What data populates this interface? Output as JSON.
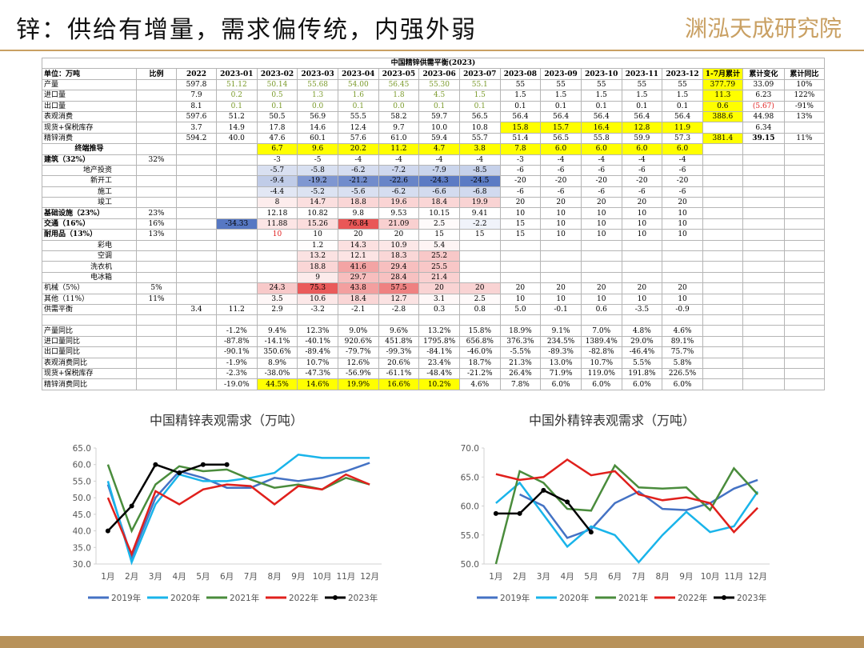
{
  "header": {
    "title": "锌：供给有增量，需求偏传统，内强外弱",
    "logo": "渊泓天成研究院"
  },
  "table": {
    "title": "中国精锌供需平衡(2023)",
    "columns": [
      "单位：万吨",
      "比例",
      "2022",
      "2023-01",
      "2023-02",
      "2023-03",
      "2023-04",
      "2023-05",
      "2023-06",
      "2023-07",
      "2023-08",
      "2023-09",
      "2023-10",
      "2023-11",
      "2023-12",
      "1-7月累计",
      "累计变化",
      "累计同比"
    ],
    "rows": [
      [
        "产量",
        null,
        "597.8",
        "51.12",
        "50.14",
        "55.68",
        "54.00",
        "56.45",
        "55.30",
        "55.1",
        "55",
        "55",
        "55",
        "55",
        "55",
        "377.79",
        "33.09",
        "10%"
      ],
      [
        "进口量",
        null,
        "7.9",
        "0.2",
        "0.5",
        "1.3",
        "1.6",
        "1.8",
        "4.5",
        "1.5",
        "1.5",
        "1.5",
        "1.5",
        "1.5",
        "1.5",
        "11.3",
        "6.23",
        "122%"
      ],
      [
        "出口量",
        null,
        "8.1",
        "0.1",
        "0.1",
        "0.0",
        "0.1",
        "0.0",
        "0.1",
        "0.1",
        "0.1",
        "0.1",
        "0.1",
        "0.1",
        "0.1",
        "0.6",
        "(5.67)",
        "-91%"
      ],
      [
        "表观消费",
        null,
        "597.6",
        "51.2",
        "50.5",
        "56.9",
        "55.5",
        "58.2",
        "59.7",
        "56.5",
        "56.4",
        "56.4",
        "56.4",
        "56.4",
        "56.4",
        "388.6",
        "44.98",
        "13%"
      ],
      [
        "现货+保税库存",
        null,
        "3.7",
        "14.9",
        "17.8",
        "14.6",
        "12.4",
        "9.7",
        "10.0",
        "10.8",
        "15.8",
        "15.7",
        "16.4",
        "12.8",
        "11.9",
        null,
        "6.34",
        null
      ],
      [
        "精锌消费",
        null,
        "594.2",
        "40.0",
        "47.6",
        "60.1",
        "57.6",
        "61.0",
        "59.4",
        "55.7",
        "51.4",
        "56.5",
        "55.8",
        "59.9",
        "57.3",
        "381.4",
        "39.15",
        "11%"
      ],
      [
        "终端推导",
        null,
        null,
        null,
        "6.7",
        "9.6",
        "20.2",
        "11.2",
        "4.7",
        "3.8",
        "7.8",
        "6.0",
        "6.0",
        "6.0",
        "6.0",
        null,
        null,
        null
      ],
      [
        "建筑（32%）",
        "32%",
        null,
        null,
        "-3",
        "-5",
        "-4",
        "-4",
        "-4",
        "-4",
        "-3",
        "-4",
        "-4",
        "-4",
        "-4",
        null,
        null,
        null
      ],
      [
        "地产投资",
        null,
        null,
        null,
        "-5.7",
        "-5.8",
        "-6.2",
        "-7.2",
        "-7.9",
        "-8.5",
        "-6",
        "-6",
        "-6",
        "-6",
        "-6",
        null,
        null,
        null
      ],
      [
        "新开工",
        null,
        null,
        null,
        "-9.4",
        "-19.2",
        "-21.2",
        "-22.6",
        "-24.3",
        "-24.5",
        "-20",
        "-20",
        "-20",
        "-20",
        "-20",
        null,
        null,
        null
      ],
      [
        "施工",
        null,
        null,
        null,
        "-4.4",
        "-5.2",
        "-5.6",
        "-6.2",
        "-6.6",
        "-6.8",
        "-6",
        "-6",
        "-6",
        "-6",
        "-6",
        null,
        null,
        null
      ],
      [
        "竣工",
        null,
        null,
        null,
        "8",
        "14.7",
        "18.8",
        "19.6",
        "18.4",
        "19.9",
        "20",
        "20",
        "20",
        "20",
        "20",
        null,
        null,
        null
      ],
      [
        "基础设施（23%）",
        "23%",
        null,
        null,
        "12.18",
        "10.82",
        "9.8",
        "9.53",
        "10.15",
        "9.41",
        "10",
        "10",
        "10",
        "10",
        "10",
        null,
        null,
        null
      ],
      [
        "交通（16%）",
        "16%",
        null,
        "-34.33",
        "11.88",
        "15.26",
        "76.84",
        "21.09",
        "2.5",
        "-2.2",
        "15",
        "10",
        "10",
        "10",
        "10",
        null,
        null,
        null
      ],
      [
        "耐用品（13%）",
        "13%",
        null,
        null,
        "10",
        "10",
        "20",
        "20",
        "15",
        "15",
        "15",
        "10",
        "10",
        "10",
        "10",
        null,
        null,
        null
      ],
      [
        "彩电",
        null,
        null,
        null,
        null,
        "1.2",
        "14.3",
        "10.9",
        "5.4",
        null,
        null,
        null,
        null,
        null,
        null,
        null,
        null,
        null
      ],
      [
        "空调",
        null,
        null,
        null,
        null,
        "13.2",
        "12.1",
        "18.3",
        "25.2",
        null,
        null,
        null,
        null,
        null,
        null,
        null,
        null,
        null
      ],
      [
        "洗衣机",
        null,
        null,
        null,
        null,
        "18.8",
        "41.6",
        "29.4",
        "25.5",
        null,
        null,
        null,
        null,
        null,
        null,
        null,
        null,
        null
      ],
      [
        "电冰箱",
        null,
        null,
        null,
        null,
        "9",
        "29.7",
        "28.4",
        "21.4",
        null,
        null,
        null,
        null,
        null,
        null,
        null,
        null,
        null
      ],
      [
        "机械（5%）",
        "5%",
        null,
        null,
        "24.3",
        "75.3",
        "43.8",
        "57.5",
        "20",
        "20",
        "20",
        "20",
        "20",
        "20",
        "20",
        null,
        null,
        null
      ],
      [
        "其他（11%）",
        "11%",
        null,
        null,
        "3.5",
        "10.6",
        "18.4",
        "12.7",
        "3.1",
        "2.5",
        "10",
        "10",
        "10",
        "10",
        "10",
        null,
        null,
        null
      ],
      [
        "供需平衡",
        null,
        "3.4",
        "11.2",
        "2.9",
        "-3.2",
        "-2.1",
        "-2.8",
        "0.3",
        "0.8",
        "5.0",
        "-0.1",
        "0.6",
        "-3.5",
        "-0.9",
        null,
        null,
        null
      ],
      [
        "产量同比",
        null,
        null,
        "-1.2%",
        "9.4%",
        "12.3%",
        "9.0%",
        "9.6%",
        "13.2%",
        "15.8%",
        "18.9%",
        "9.1%",
        "7.0%",
        "4.8%",
        "4.6%",
        null,
        null,
        null
      ],
      [
        "进口量同比",
        null,
        null,
        "-87.8%",
        "-14.1%",
        "-40.1%",
        "920.6%",
        "451.8%",
        "1795.8%",
        "656.8%",
        "376.3%",
        "234.5%",
        "1389.4%",
        "29.0%",
        "89.1%",
        null,
        null,
        null
      ],
      [
        "出口量同比",
        null,
        null,
        "-90.1%",
        "350.6%",
        "-89.4%",
        "-79.7%",
        "-99.3%",
        "-84.1%",
        "-46.0%",
        "-5.5%",
        "-89.3%",
        "-82.8%",
        "-46.4%",
        "75.7%",
        null,
        null,
        null
      ],
      [
        "表观消费同比",
        null,
        null,
        "-1.9%",
        "8.9%",
        "10.7%",
        "12.6%",
        "20.6%",
        "23.4%",
        "18.7%",
        "21.3%",
        "13.0%",
        "10.7%",
        "5.5%",
        "5.8%",
        null,
        null,
        null
      ],
      [
        "现货+保税库存",
        null,
        null,
        "-2.3%",
        "-38.0%",
        "-47.3%",
        "-56.9%",
        "-61.1%",
        "-48.4%",
        "-21.2%",
        "26.4%",
        "71.9%",
        "119.0%",
        "191.8%",
        "226.5%",
        null,
        null,
        null
      ],
      [
        "精锌消费同比",
        null,
        null,
        "-19.0%",
        "44.5%",
        "14.6%",
        "19.9%",
        "16.6%",
        "10.2%",
        "4.6%",
        "7.8%",
        "6.0%",
        "6.0%",
        "6.0%",
        "6.0%",
        null,
        null,
        null
      ]
    ]
  },
  "chart_data": [
    {
      "type": "line",
      "title": "中国精锌表观需求（万吨）",
      "categories": [
        "1月",
        "2月",
        "3月",
        "4月",
        "5月",
        "6月",
        "7月",
        "8月",
        "9月",
        "10月",
        "11月",
        "12月"
      ],
      "ylim": [
        30,
        65
      ],
      "yticks": [
        {
          "value": 30,
          "label": "30.0"
        },
        {
          "value": 35,
          "label": "35.0"
        },
        {
          "value": 40,
          "label": "40.0"
        },
        {
          "value": 45,
          "label": "45.0"
        },
        {
          "value": 50,
          "label": "50.0"
        },
        {
          "value": 55,
          "label": "55.0"
        },
        {
          "value": 60,
          "label": "60.0"
        },
        {
          "value": 65,
          "label": "65.0"
        }
      ],
      "series": [
        {
          "name": "2019年",
          "color": "#4472c4",
          "values": [
            54,
            32,
            50,
            58,
            56,
            53,
            53,
            56,
            55,
            56,
            58,
            60.5
          ]
        },
        {
          "name": "2020年",
          "color": "#19b4ea",
          "values": [
            55,
            30.5,
            48,
            57,
            55,
            55,
            56,
            57.5,
            63,
            62,
            62,
            62
          ]
        },
        {
          "name": "2021年",
          "color": "#4a8c3c",
          "values": [
            60,
            40,
            54,
            59.5,
            58,
            58.5,
            55.5,
            53,
            54,
            52.5,
            56,
            54
          ]
        },
        {
          "name": "2022年",
          "color": "#e0201c",
          "values": [
            50,
            33,
            52,
            48,
            52.5,
            54,
            53.5,
            48,
            53.5,
            52.5,
            57,
            54
          ]
        },
        {
          "name": "2023年",
          "color": "#000000",
          "values": [
            40,
            47.5,
            60,
            57.5,
            60,
            60,
            null,
            null,
            null,
            null,
            null,
            null
          ]
        }
      ]
    },
    {
      "type": "line",
      "title": "中国外精锌表观需求（万吨）",
      "categories": [
        "1月",
        "2月",
        "3月",
        "4月",
        "5月",
        "6月",
        "7月",
        "8月",
        "9月",
        "10月",
        "11月",
        "12月"
      ],
      "ylim": [
        50,
        70
      ],
      "yticks": [
        {
          "value": 50,
          "label": "50.0"
        },
        {
          "value": 55,
          "label": "55.0"
        },
        {
          "value": 60,
          "label": "60.0"
        },
        {
          "value": 65,
          "label": "65.0"
        },
        {
          "value": 70,
          "label": "70.0"
        }
      ],
      "series": [
        {
          "name": "2019年",
          "color": "#4472c4",
          "values": [
            null,
            62,
            60,
            54.5,
            56,
            60.5,
            62.5,
            59.5,
            59.3,
            60.5,
            63,
            64.5
          ]
        },
        {
          "name": "2020年",
          "color": "#19b4ea",
          "values": [
            60.5,
            64,
            58.5,
            53,
            56.5,
            55,
            50.3,
            55,
            59,
            55.5,
            56.5,
            62.5
          ]
        },
        {
          "name": "2021年",
          "color": "#4a8c3c",
          "values": [
            50,
            66,
            64,
            59.5,
            59.2,
            67,
            63.2,
            63,
            63.2,
            59.3,
            66.5,
            62
          ]
        },
        {
          "name": "2022年",
          "color": "#e0201c",
          "values": [
            65.5,
            64.5,
            65,
            68,
            65.3,
            66,
            62,
            61,
            61.5,
            60.5,
            55.5,
            59.7
          ]
        },
        {
          "name": "2023年",
          "color": "#000000",
          "values": [
            58.7,
            58.7,
            62.7,
            60.7,
            55.5,
            null,
            null,
            null,
            null,
            null,
            null,
            null
          ]
        }
      ]
    }
  ]
}
